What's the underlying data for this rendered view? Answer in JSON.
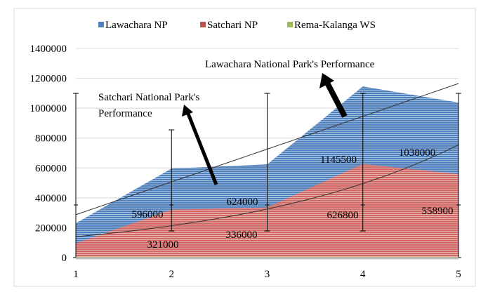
{
  "chart_data": {
    "type": "area",
    "categories": [
      "1",
      "2",
      "3",
      "4",
      "5"
    ],
    "x": [
      1,
      2,
      3,
      4,
      5
    ],
    "series": [
      {
        "name": "Lawachara NP",
        "color": "#4f81bd",
        "values": [
          230000,
          596000,
          624000,
          1145500,
          1038000
        ],
        "labels": [
          "",
          "596000",
          "624000",
          "1145500",
          "1038000"
        ]
      },
      {
        "name": "Satchari NP",
        "color": "#c0504d",
        "values": [
          95000,
          321000,
          336000,
          626800,
          558900
        ],
        "labels": [
          "",
          "321000",
          "336000",
          "626800",
          "558900"
        ]
      },
      {
        "name": "Rema-Kalanga WS",
        "color": "#9bbb59",
        "values": [
          5000,
          5000,
          5000,
          5000,
          5000
        ],
        "labels": [
          "",
          "",
          "",
          "",
          ""
        ]
      }
    ],
    "trendlines": [
      {
        "series": "Lawachara NP",
        "kind": "linear",
        "start": 287000,
        "end": 1165000
      },
      {
        "series": "Satchari NP",
        "kind": "exponential",
        "start": 140000,
        "end": 755000
      }
    ],
    "annotations": [
      {
        "text_lines": [
          "Satchari National Park's",
          "Performance"
        ]
      },
      {
        "text_lines": [
          "Lawachara National Park's Performance"
        ]
      }
    ],
    "yticks": [
      "0",
      "200000",
      "400000",
      "600000",
      "800000",
      "1000000",
      "1200000",
      "1400000"
    ],
    "ylim": [
      0,
      1400000
    ],
    "xlim": [
      1,
      5
    ],
    "grid": true,
    "legend": "top",
    "title": "",
    "xlabel": "",
    "ylabel": ""
  }
}
